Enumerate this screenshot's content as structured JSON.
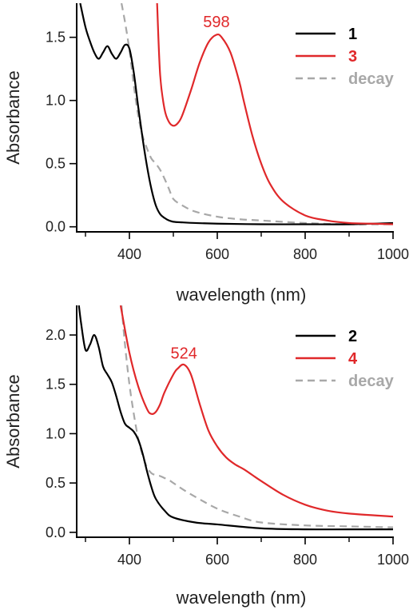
{
  "chart_data": [
    {
      "type": "line",
      "xlabel": "wavelength (nm)",
      "ylabel": "Absorbance",
      "xlim": [
        280,
        1000
      ],
      "ylim": [
        -0.04,
        1.77
      ],
      "xticks": [
        {
          "value": 400,
          "label": "400"
        },
        {
          "value": 600,
          "label": "600"
        },
        {
          "value": 800,
          "label": "800"
        },
        {
          "value": 1000,
          "label": "1000"
        }
      ],
      "xminor": [
        300,
        500,
        700,
        900
      ],
      "yticks": [
        {
          "value": 0,
          "label": "0.0"
        },
        {
          "value": 0.5,
          "label": "0.5"
        },
        {
          "value": 1.0,
          "label": "1.0"
        },
        {
          "value": 1.5,
          "label": "1.5"
        }
      ],
      "grid": false,
      "legend_position": "top-right",
      "annotations": [
        {
          "text": "598",
          "x": 598,
          "y": 1.58,
          "color": "#e0282a"
        }
      ],
      "series": [
        {
          "name": "1",
          "color": "#000000",
          "dash": "solid",
          "x": [
            288,
            300,
            310,
            320,
            330,
            340,
            350,
            360,
            370,
            380,
            390,
            400,
            410,
            420,
            430,
            440,
            450,
            460,
            470,
            480,
            490,
            500,
            520,
            550,
            600,
            700,
            800,
            900,
            1000
          ],
          "y": [
            1.77,
            1.58,
            1.47,
            1.38,
            1.33,
            1.38,
            1.43,
            1.37,
            1.33,
            1.38,
            1.44,
            1.41,
            1.22,
            0.95,
            0.7,
            0.48,
            0.3,
            0.17,
            0.1,
            0.07,
            0.05,
            0.04,
            0.035,
            0.03,
            0.025,
            0.02,
            0.02,
            0.02,
            0.03
          ]
        },
        {
          "name": "3",
          "color": "#e0282a",
          "dash": "solid",
          "x": [
            463,
            470,
            480,
            490,
            500,
            510,
            520,
            540,
            560,
            580,
            598,
            610,
            630,
            650,
            660,
            680,
            700,
            720,
            750,
            800,
            850,
            900,
            950,
            1000
          ],
          "y": [
            1.77,
            1.2,
            0.93,
            0.83,
            0.8,
            0.82,
            0.88,
            1.08,
            1.3,
            1.46,
            1.52,
            1.5,
            1.38,
            1.15,
            1.0,
            0.72,
            0.5,
            0.34,
            0.2,
            0.09,
            0.05,
            0.03,
            0.025,
            0.02
          ]
        },
        {
          "name": "decay",
          "color": "#a8a8a8",
          "dash": "dashed",
          "x": [
            382,
            390,
            400,
            410,
            420,
            430,
            440,
            450,
            460,
            470,
            480,
            490,
            500,
            520,
            550,
            600,
            650,
            700,
            800,
            900,
            1000
          ],
          "y": [
            1.77,
            1.62,
            1.4,
            1.12,
            0.88,
            0.72,
            0.62,
            0.54,
            0.5,
            0.45,
            0.38,
            0.3,
            0.22,
            0.17,
            0.12,
            0.08,
            0.06,
            0.05,
            0.03,
            0.02,
            0.02
          ]
        }
      ]
    },
    {
      "type": "line",
      "xlabel": "wavelength (nm)",
      "ylabel": "Absorbance",
      "xlim": [
        280,
        1000
      ],
      "ylim": [
        -0.05,
        2.3
      ],
      "xticks": [
        {
          "value": 400,
          "label": "400"
        },
        {
          "value": 600,
          "label": "600"
        },
        {
          "value": 800,
          "label": "800"
        },
        {
          "value": 1000,
          "label": "1000"
        }
      ],
      "xminor": [
        300,
        500,
        700,
        900
      ],
      "yticks": [
        {
          "value": 0,
          "label": "0.0"
        },
        {
          "value": 0.5,
          "label": "0.5"
        },
        {
          "value": 1.0,
          "label": "1.0"
        },
        {
          "value": 1.5,
          "label": "1.5"
        },
        {
          "value": 2.0,
          "label": "2.0"
        }
      ],
      "grid": false,
      "legend_position": "top-right",
      "annotations": [
        {
          "text": "524",
          "x": 524,
          "y": 1.76,
          "color": "#e0282a"
        }
      ],
      "series": [
        {
          "name": "2",
          "color": "#000000",
          "dash": "solid",
          "x": [
            285,
            290,
            300,
            310,
            320,
            330,
            340,
            350,
            360,
            370,
            380,
            390,
            400,
            410,
            420,
            430,
            440,
            450,
            460,
            480,
            500,
            550,
            600,
            700,
            800,
            900,
            1000
          ],
          "y": [
            2.3,
            2.12,
            1.85,
            1.9,
            2.0,
            1.88,
            1.68,
            1.6,
            1.52,
            1.38,
            1.22,
            1.1,
            1.06,
            1.02,
            0.94,
            0.8,
            0.62,
            0.46,
            0.34,
            0.22,
            0.15,
            0.1,
            0.08,
            0.04,
            0.03,
            0.03,
            0.03
          ]
        },
        {
          "name": "4",
          "color": "#e0282a",
          "dash": "solid",
          "x": [
            380,
            400,
            420,
            440,
            450,
            460,
            470,
            480,
            500,
            510,
            524,
            540,
            560,
            580,
            600,
            620,
            640,
            660,
            680,
            700,
            750,
            800,
            850,
            900,
            1000
          ],
          "y": [
            2.3,
            1.82,
            1.48,
            1.25,
            1.2,
            1.22,
            1.3,
            1.42,
            1.6,
            1.66,
            1.7,
            1.6,
            1.3,
            1.03,
            0.87,
            0.76,
            0.69,
            0.64,
            0.58,
            0.52,
            0.38,
            0.28,
            0.22,
            0.19,
            0.16
          ]
        },
        {
          "name": "decay",
          "color": "#a8a8a8",
          "dash": "dashed",
          "x": [
            382,
            390,
            400,
            410,
            420,
            430,
            440,
            450,
            460,
            470,
            480,
            490,
            500,
            520,
            550,
            600,
            650,
            700,
            800,
            900,
            1000
          ],
          "y": [
            2.3,
            1.9,
            1.5,
            1.2,
            0.95,
            0.78,
            0.66,
            0.6,
            0.58,
            0.57,
            0.55,
            0.53,
            0.5,
            0.44,
            0.36,
            0.24,
            0.16,
            0.1,
            0.07,
            0.06,
            0.05
          ]
        }
      ]
    }
  ]
}
